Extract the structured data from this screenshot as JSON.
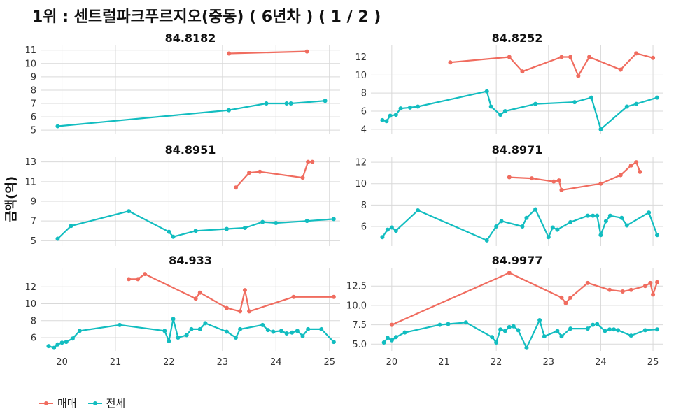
{
  "title": "1위 : 센트럴파크푸르지오(중동) ( 6년차 ) ( 1 / 2 )",
  "ylabel": "금액(억)",
  "colors": {
    "sale": "#F06C5F",
    "jeonse": "#12BDC0",
    "grid": "#D9D9D9",
    "text": "#333333"
  },
  "legend": [
    {
      "label": "매매",
      "color": "#F06C5F"
    },
    {
      "label": "전세",
      "color": "#12BDC0"
    }
  ],
  "chart_data": {
    "type": "line",
    "x_ticks": [
      20,
      21,
      22,
      23,
      24,
      25
    ],
    "x_tick_labels": [
      "20",
      "21",
      "22",
      "23",
      "24",
      "25"
    ],
    "xlim": [
      19.6,
      25.2
    ],
    "panels": [
      {
        "title": "84.8182",
        "ylim": [
          4.8,
          11.3
        ],
        "y_ticks": [
          5,
          6,
          7,
          8,
          9,
          10,
          11
        ],
        "y_tick_labels": [
          "5",
          "6",
          "7",
          "8",
          "9",
          "10",
          "11"
        ],
        "series": [
          {
            "name": "매매",
            "x": [
              23.12,
              24.58
            ],
            "y": [
              10.75,
              10.9
            ]
          },
          {
            "name": "전세",
            "x": [
              19.92,
              23.12,
              23.82,
              24.2,
              24.28,
              24.92
            ],
            "y": [
              5.3,
              6.5,
              7.0,
              7.0,
              7.0,
              7.2
            ]
          }
        ]
      },
      {
        "title": "84.8252",
        "ylim": [
          3.6,
          13.2
        ],
        "y_ticks": [
          4,
          6,
          8,
          10,
          12
        ],
        "y_tick_labels": [
          "4",
          "6",
          "8",
          "10",
          "12"
        ],
        "series": [
          {
            "name": "매매",
            "x": [
              21.12,
              22.25,
              22.5,
              23.25,
              23.42,
              23.57,
              23.78,
              24.38,
              24.68,
              25.0
            ],
            "y": [
              11.4,
              12.0,
              10.4,
              12.0,
              12.0,
              9.9,
              12.0,
              10.6,
              12.4,
              11.9
            ]
          },
          {
            "name": "전세",
            "x": [
              19.82,
              19.9,
              19.97,
              20.08,
              20.17,
              20.35,
              20.5,
              21.82,
              21.9,
              22.08,
              22.17,
              22.75,
              23.5,
              23.82,
              24.0,
              24.5,
              24.68,
              25.08
            ],
            "y": [
              5.0,
              4.9,
              5.5,
              5.6,
              6.3,
              6.4,
              6.5,
              8.2,
              6.5,
              5.6,
              6.0,
              6.8,
              7.0,
              7.5,
              4.0,
              6.5,
              6.8,
              7.5
            ]
          }
        ]
      },
      {
        "title": "84.8951",
        "ylim": [
          4.6,
          13.4
        ],
        "y_ticks": [
          5,
          7,
          9,
          11,
          13
        ],
        "y_tick_labels": [
          "5",
          "7",
          "9",
          "11",
          "13"
        ],
        "series": [
          {
            "name": "매매",
            "x": [
              23.25,
              23.5,
              23.7,
              24.5,
              24.6,
              24.68
            ],
            "y": [
              10.4,
              11.9,
              12.0,
              11.4,
              13.0,
              13.0
            ]
          },
          {
            "name": "전세",
            "x": [
              19.92,
              20.17,
              21.25,
              22.0,
              22.08,
              22.5,
              23.08,
              23.42,
              23.75,
              24.0,
              24.58,
              25.08
            ],
            "y": [
              5.2,
              6.5,
              8.0,
              5.9,
              5.4,
              6.0,
              6.2,
              6.3,
              6.9,
              6.8,
              7.0,
              7.2
            ]
          }
        ]
      },
      {
        "title": "84.8971",
        "ylim": [
          4.3,
          12.4
        ],
        "y_ticks": [
          6,
          8,
          10,
          12
        ],
        "y_tick_labels": [
          "6",
          "8",
          "10",
          "12"
        ],
        "series": [
          {
            "name": "매매",
            "x": [
              22.25,
              22.68,
              23.1,
              23.2,
              23.25,
              24.0,
              24.38,
              24.58,
              24.68,
              24.75
            ],
            "y": [
              10.6,
              10.5,
              10.2,
              10.3,
              9.4,
              10.0,
              10.8,
              11.7,
              12.0,
              11.1
            ]
          },
          {
            "name": "전세",
            "x": [
              19.82,
              19.92,
              20.0,
              20.08,
              20.5,
              21.82,
              22.0,
              22.1,
              22.5,
              22.58,
              22.75,
              23.0,
              23.08,
              23.17,
              23.42,
              23.75,
              23.85,
              23.93,
              24.0,
              24.1,
              24.18,
              24.4,
              24.5,
              24.92,
              25.08
            ],
            "y": [
              5.0,
              5.7,
              5.9,
              5.6,
              7.5,
              4.7,
              6.0,
              6.5,
              6.0,
              6.8,
              7.6,
              5.0,
              5.9,
              5.7,
              6.4,
              7.0,
              7.0,
              7.0,
              5.2,
              6.5,
              7.0,
              6.8,
              6.1,
              7.3,
              5.2
            ]
          }
        ]
      },
      {
        "title": "84.933",
        "ylim": [
          4.6,
          14.0
        ],
        "y_ticks": [
          6,
          8,
          10,
          12
        ],
        "y_tick_labels": [
          "6",
          "8",
          "10",
          "12"
        ],
        "series": [
          {
            "name": "매매",
            "x": [
              21.25,
              21.42,
              21.55,
              22.5,
              22.58,
              23.08,
              23.33,
              23.42,
              23.5,
              24.33,
              25.08
            ],
            "y": [
              12.9,
              12.9,
              13.5,
              10.6,
              11.3,
              9.5,
              9.1,
              11.6,
              9.1,
              10.8,
              10.8
            ]
          },
          {
            "name": "전세",
            "x": [
              19.75,
              19.85,
              19.92,
              20.0,
              20.08,
              20.2,
              20.33,
              21.08,
              21.92,
              22.0,
              22.08,
              22.17,
              22.33,
              22.42,
              22.58,
              22.68,
              23.08,
              23.25,
              23.33,
              23.75,
              23.85,
              23.95,
              24.1,
              24.2,
              24.3,
              24.4,
              24.5,
              24.6,
              24.85,
              25.08
            ],
            "y": [
              5.0,
              4.8,
              5.2,
              5.4,
              5.5,
              5.9,
              6.8,
              7.5,
              6.8,
              5.6,
              8.2,
              6.0,
              6.3,
              7.0,
              7.0,
              7.7,
              6.7,
              6.0,
              7.0,
              7.5,
              6.9,
              6.7,
              6.8,
              6.5,
              6.6,
              6.8,
              6.2,
              7.0,
              7.0,
              5.5
            ]
          }
        ]
      },
      {
        "title": "84.9977",
        "ylim": [
          4.3,
          14.6
        ],
        "y_ticks": [
          5.0,
          7.5,
          10.0,
          12.5
        ],
        "y_tick_labels": [
          "5.0",
          "7.5",
          "10.0",
          "12.5"
        ],
        "series": [
          {
            "name": "매매",
            "x": [
              20.0,
              22.25,
              23.25,
              23.33,
              23.42,
              23.75,
              24.17,
              24.42,
              24.58,
              24.85,
              24.95,
              25.0,
              25.08
            ],
            "y": [
              7.5,
              14.2,
              11.0,
              10.3,
              11.0,
              12.9,
              12.0,
              11.8,
              12.0,
              12.5,
              12.9,
              11.4,
              13.0
            ]
          },
          {
            "name": "전세",
            "x": [
              19.85,
              19.92,
              20.0,
              20.08,
              20.25,
              20.92,
              21.08,
              21.42,
              21.92,
              22.0,
              22.08,
              22.17,
              22.25,
              22.33,
              22.42,
              22.58,
              22.83,
              22.92,
              23.17,
              23.25,
              23.42,
              23.75,
              23.85,
              23.93,
              24.08,
              24.17,
              24.25,
              24.33,
              24.58,
              24.85,
              25.08
            ],
            "y": [
              5.2,
              5.8,
              5.5,
              5.9,
              6.5,
              7.5,
              7.6,
              7.8,
              5.9,
              5.2,
              6.9,
              6.7,
              7.2,
              7.3,
              6.8,
              4.5,
              8.1,
              6.0,
              6.7,
              6.0,
              7.0,
              7.0,
              7.5,
              7.6,
              6.7,
              6.9,
              6.9,
              6.8,
              6.1,
              6.8,
              6.9
            ]
          }
        ]
      }
    ]
  }
}
